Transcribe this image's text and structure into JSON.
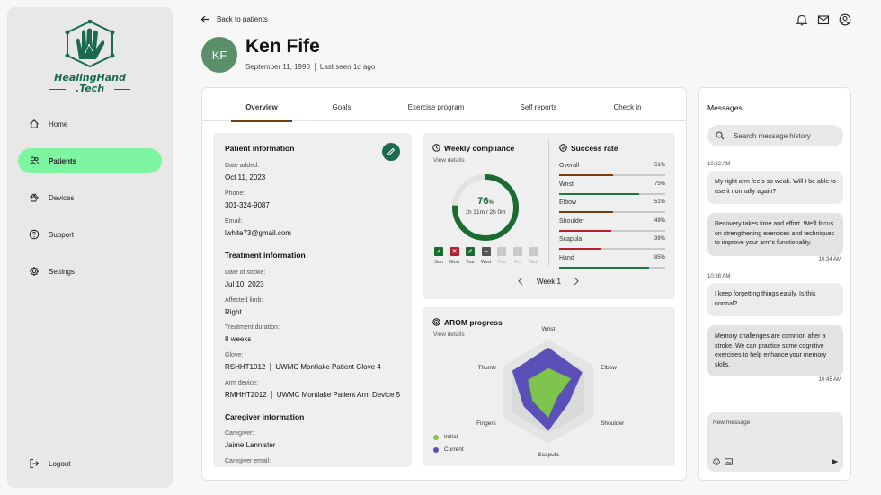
{
  "brand": {
    "line1": "HealingHand",
    "line2": ".Tech"
  },
  "nav": [
    {
      "label": "Home",
      "icon": "home-icon"
    },
    {
      "label": "Patients",
      "icon": "patients-icon",
      "active": true
    },
    {
      "label": "Devices",
      "icon": "devices-icon"
    },
    {
      "label": "Support",
      "icon": "support-icon"
    },
    {
      "label": "Settings",
      "icon": "gear-icon"
    }
  ],
  "logout_label": "Logout",
  "back_label": "Back to patients",
  "patient": {
    "initials": "KF",
    "name": "Ken Fife",
    "dob": "September 11, 1990",
    "last_seen": "Last seen 1d ago"
  },
  "tabs": [
    "Overview",
    "Goals",
    "Exercise program",
    "Self reports",
    "Check in"
  ],
  "info": {
    "patient_title": "Patient information",
    "date_added_label": "Date added:",
    "date_added": "Oct 11, 2023",
    "phone_label": "Phone:",
    "phone": "301-324-9087",
    "email_label": "Email:",
    "email": "lwhite73@gmail.com",
    "treatment_title": "Treatment information",
    "stroke_label": "Date of stroke:",
    "stroke": "Jul 10, 2023",
    "limb_label": "Affected limb:",
    "limb": "Right",
    "duration_label": "Treatment duration:",
    "duration": "8 weeks",
    "glove_label": "Glove:",
    "glove_id": "RSHHT1012",
    "glove_name": "UWMC Montlake Patient Glove 4",
    "arm_label": "Arm device:",
    "arm_id": "RMHHT2012",
    "arm_name": "UWMC Montlake Patient Arm Device 5",
    "caregiver_title": "Caregiver information",
    "caregiver_label": "Caregiver:",
    "caregiver": "Jaime Lannister",
    "caregiver_email_label": "Caregiver email:"
  },
  "compliance": {
    "title": "Weekly compliance",
    "view_details": "View details",
    "percent": "76",
    "percent_unit": "%",
    "percent_value": 0.76,
    "time": "1h 31m / 2h 0m",
    "week_label": "Week 1",
    "days": [
      {
        "d": "Sun",
        "state": "done"
      },
      {
        "d": "Mon",
        "state": "missed"
      },
      {
        "d": "Tue",
        "state": "done"
      },
      {
        "d": "Wed",
        "state": "partial"
      },
      {
        "d": "Thu",
        "state": "future"
      },
      {
        "d": "Fri",
        "state": "future"
      },
      {
        "d": "Sat",
        "state": "future"
      }
    ]
  },
  "success": {
    "title": "Success rate",
    "rows": [
      {
        "name": "Overall",
        "pct": "51%",
        "value": 0.51,
        "color": "#7a3c0a"
      },
      {
        "name": "Wrist",
        "pct": "75%",
        "value": 0.75,
        "color": "#1a7a3c"
      },
      {
        "name": "Elbow",
        "pct": "51%",
        "value": 0.51,
        "color": "#7a3c0a"
      },
      {
        "name": "Shoulder",
        "pct": "49%",
        "value": 0.49,
        "color": "#b3202c"
      },
      {
        "name": "Scapula",
        "pct": "39%",
        "value": 0.39,
        "color": "#b3202c"
      },
      {
        "name": "Hand",
        "pct": "85%",
        "value": 0.85,
        "color": "#1a7a3c"
      }
    ]
  },
  "arom": {
    "title": "AROM progress",
    "view_details": "View details",
    "axes": [
      "Wrist",
      "Elbow",
      "Shoulder",
      "Scapula",
      "Fingers",
      "Thumb"
    ],
    "initial": [
      0.45,
      0.5,
      0.2,
      0.5,
      0.35,
      0.45
    ],
    "current": [
      0.85,
      0.75,
      0.45,
      0.75,
      0.55,
      0.8
    ],
    "legend_initial": "Initial",
    "legend_current": "Current"
  },
  "messages": {
    "title": "Messages",
    "search_placeholder": "Search message history",
    "items": [
      {
        "time": "10:32 AM",
        "text": "My right arm feels so weak. Will I be able to use it normally again?"
      },
      {
        "time": "10:34 AM",
        "text": "Recovery takes time and effort. We'll focus on strengthening exercises and techniques to improve your arm's functionality."
      },
      {
        "time": "10:38 AM",
        "text": "I keep forgetting things easily. Is this normal?"
      },
      {
        "time": "10:45 AM",
        "text": "Memory challenges are common after a stroke. We can practice some cognitive exercises to help enhance your memory skills."
      }
    ],
    "new_message_placeholder": "New message"
  },
  "colors": {
    "accent": "#1a6b4d",
    "active_nav": "#7ef5a0",
    "ring": "#1a6b2f"
  }
}
